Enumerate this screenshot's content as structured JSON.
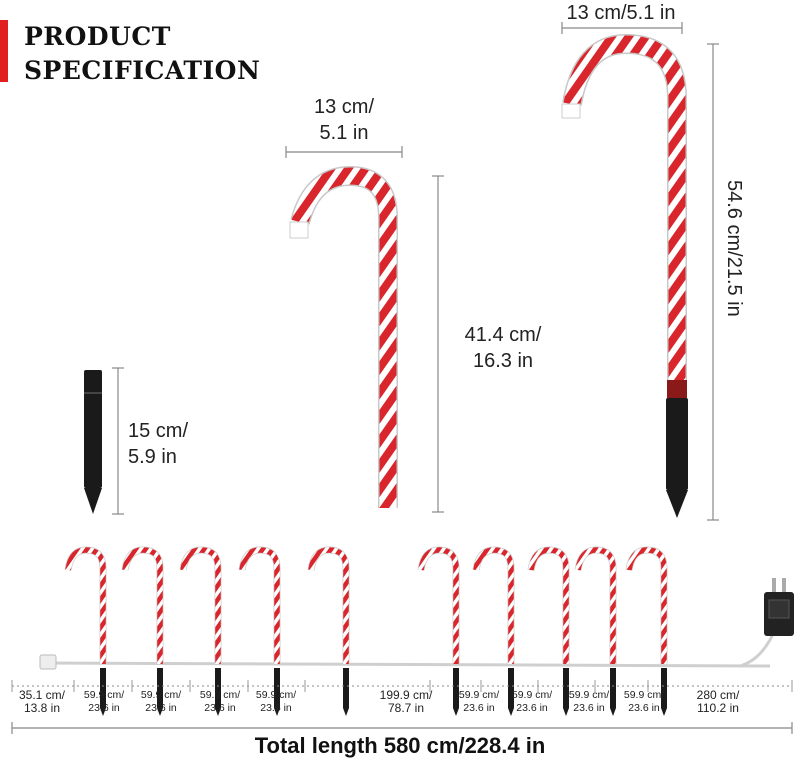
{
  "header": {
    "line1": "PRODUCT",
    "line2": "SPECIFICATION"
  },
  "dimensions": {
    "stake_height": {
      "cm": "15 cm/",
      "inch": "5.9 in"
    },
    "small_cane_width": {
      "cm": "13 cm/",
      "inch": "5.1 in"
    },
    "small_cane_height": {
      "cm": "41.4 cm/",
      "inch": "16.3 in"
    },
    "large_cane_width": "13 cm/5.1 in",
    "large_cane_height": "54.6 cm/21.5 in"
  },
  "segments": [
    {
      "cm": "35.1 cm/",
      "inch": "13.8 in"
    },
    {
      "cm": "59.9 cm/",
      "inch": "23.6 in"
    },
    {
      "cm": "59.9 cm/",
      "inch": "23.6 in"
    },
    {
      "cm": "59.9 cm/",
      "inch": "23.6 in"
    },
    {
      "cm": "59.9 cm/",
      "inch": "23.6 in"
    },
    {
      "cm": "199.9 cm/",
      "inch": "78.7 in"
    },
    {
      "cm": "59.9 cm/",
      "inch": "23.6 in"
    },
    {
      "cm": "59.9 cm/",
      "inch": "23.6 in"
    },
    {
      "cm": "59.9 cm/",
      "inch": "23.6 in"
    },
    {
      "cm": "59.9 cm/",
      "inch": "23.6 in"
    },
    {
      "cm": "280 cm/",
      "inch": "110.2 in"
    }
  ],
  "total_length": "Total length 580 cm/228.4 in",
  "colors": {
    "accent": "#e02020",
    "cane_red": "#d9262c",
    "stake": "#1a1a1a"
  },
  "icons": {
    "cane": "candy-cane-icon",
    "stake": "ground-stake-icon",
    "adapter": "power-adapter-icon"
  }
}
